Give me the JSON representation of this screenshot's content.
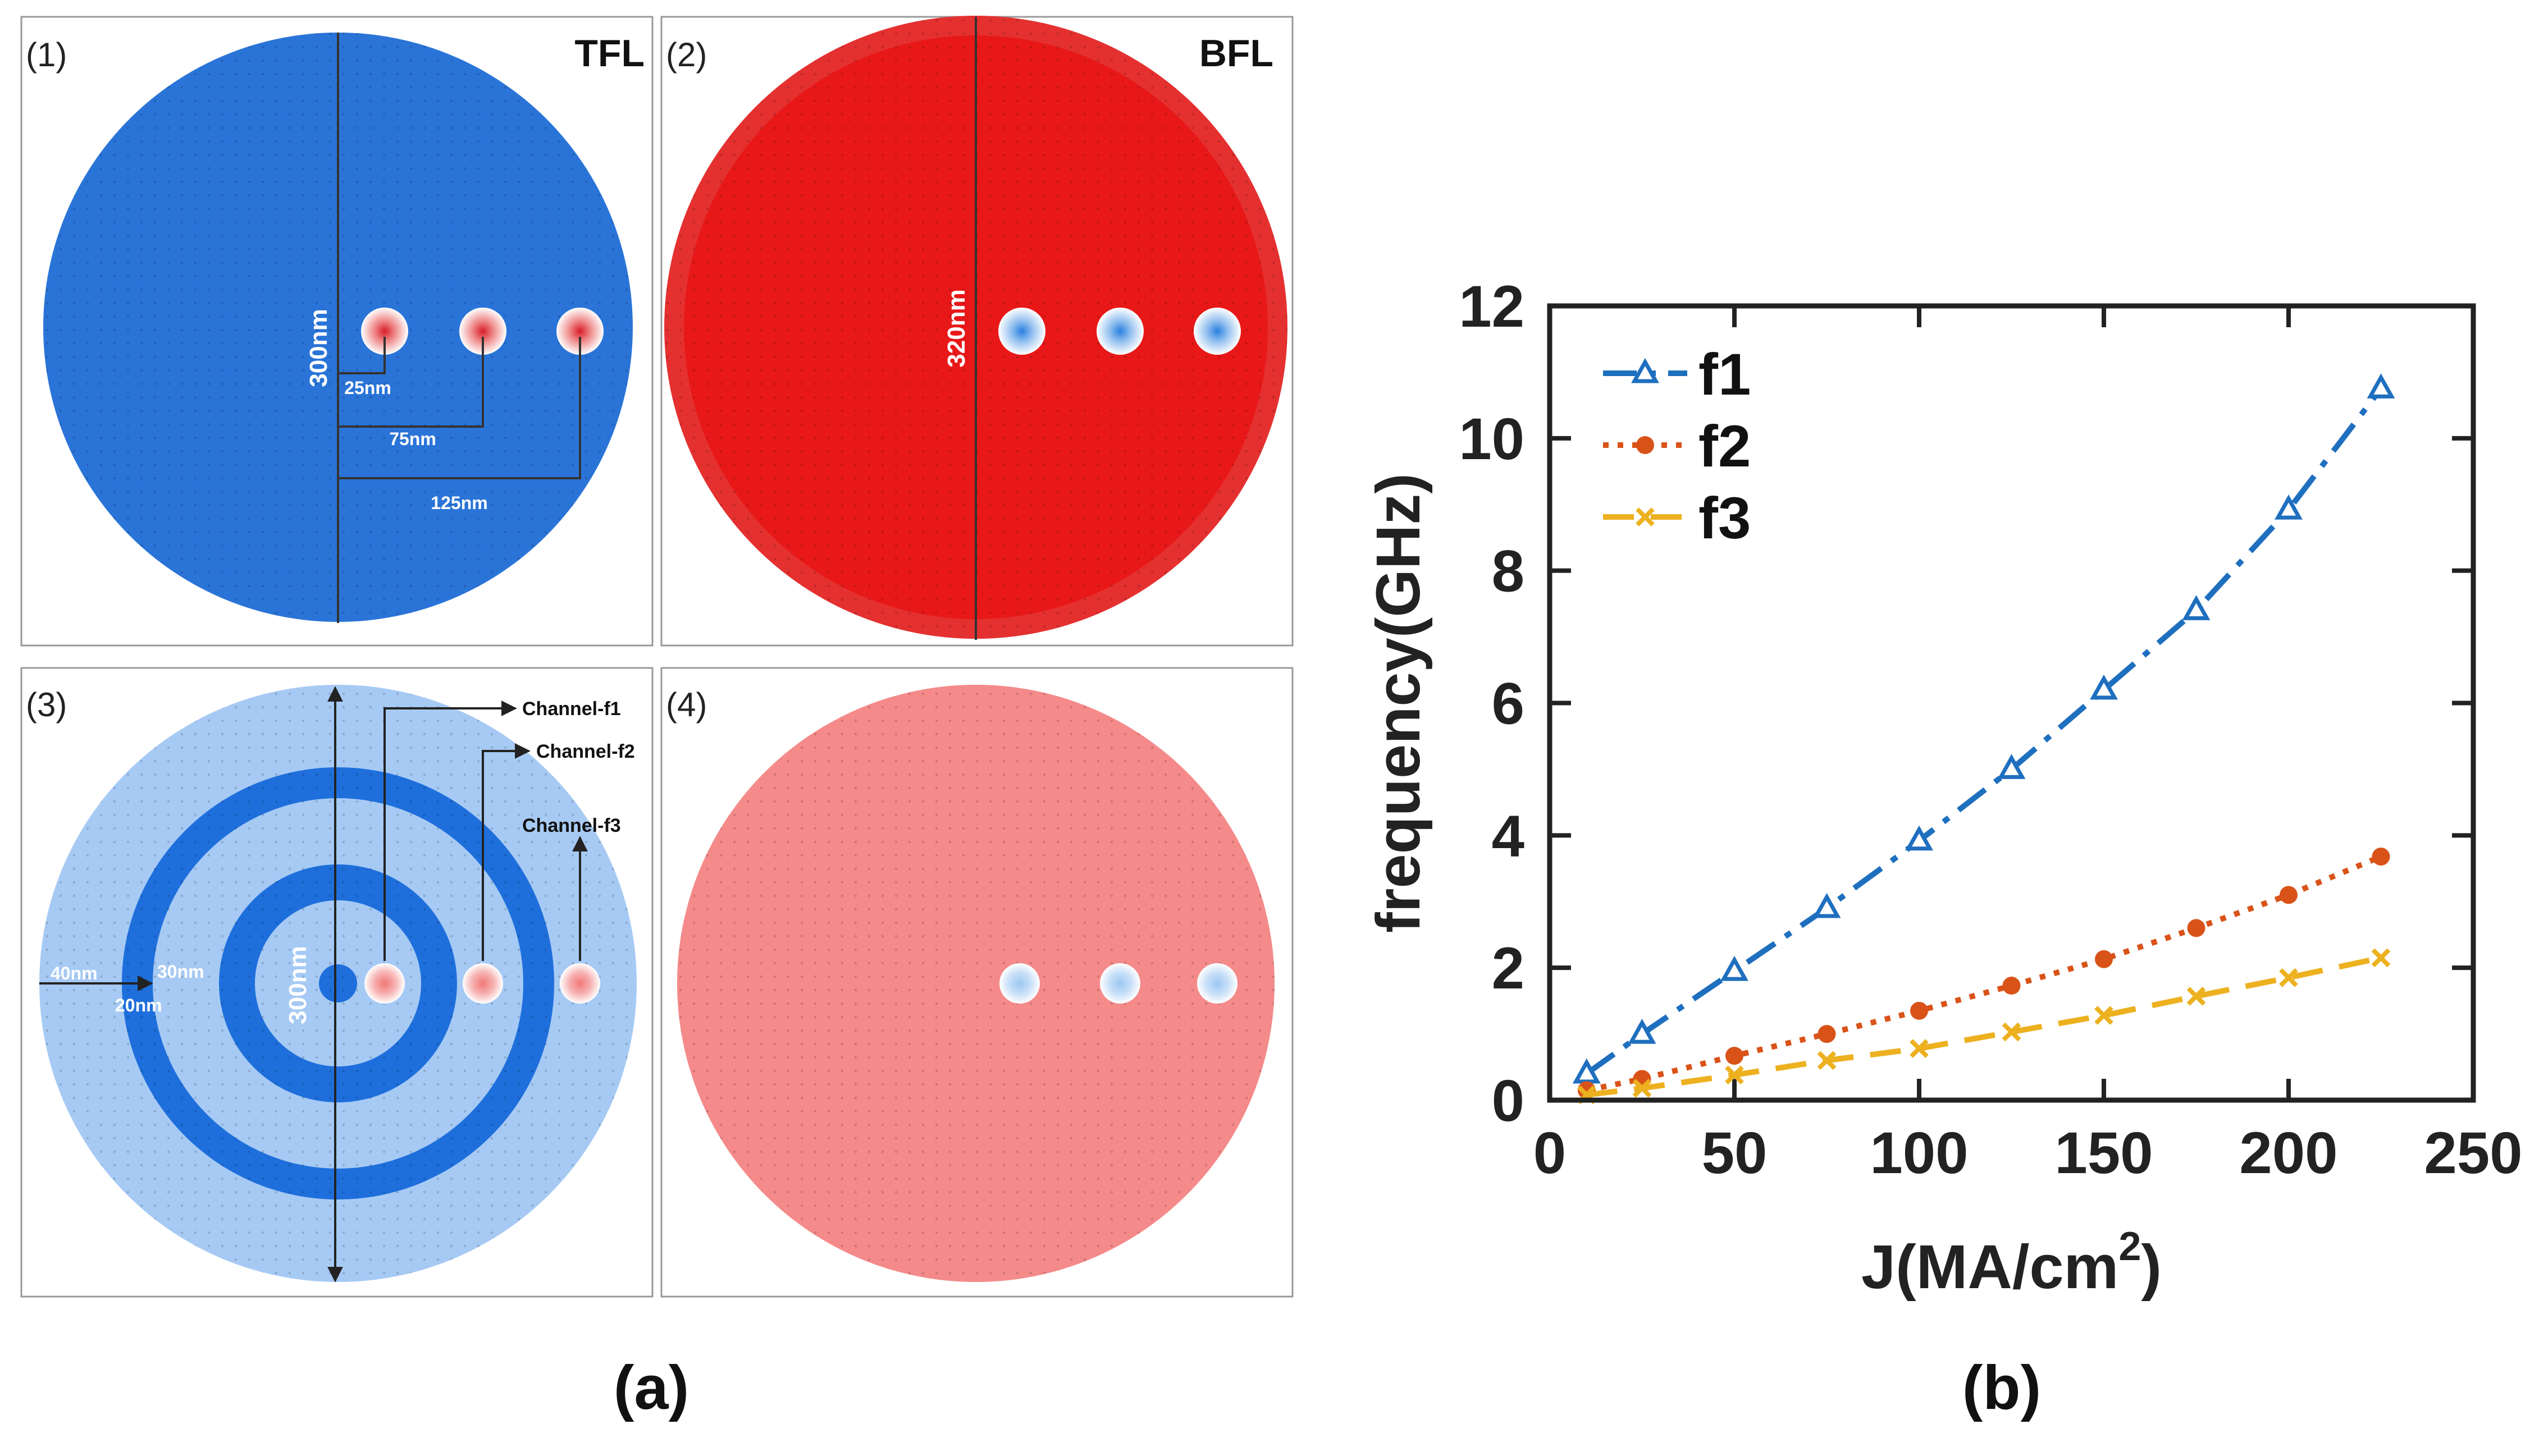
{
  "panel_a": {
    "label": "(a)",
    "subpanels": [
      {
        "label": "(1)",
        "title": "TFL",
        "fill": "#2a74d8",
        "dot_color": "#d81e2a",
        "annotations": {
          "diameter": "300nm",
          "d1": "25nm",
          "d2": "75nm",
          "d3": "125nm"
        }
      },
      {
        "label": "(2)",
        "title": "BFL",
        "fill": "#e81818",
        "dot_color": "#2a80e0",
        "annotations": {
          "diameter": "320nm"
        }
      },
      {
        "label": "(3)",
        "fill_light": "#a6caf4",
        "fill_dark": "#1e6fdc",
        "dot_color": "#f27878",
        "annotations": {
          "ch1": "Channel-f1",
          "ch2": "Channel-f2",
          "ch3": "Channel-f3",
          "w40": "40nm",
          "w30": "30nm",
          "w20": "20nm",
          "diameter": "300nm"
        }
      },
      {
        "label": "(4)",
        "fill": "#f58a8a",
        "dot_color": "#9cc8f2"
      }
    ]
  },
  "panel_b": {
    "label": "(b)"
  },
  "chart_data": {
    "type": "line",
    "xlabel": "J(MA/cm",
    "xlabel_sup": "2",
    "xlabel_end": ")",
    "ylabel": "frequency(GHz)",
    "xlim": [
      0,
      250
    ],
    "ylim": [
      0,
      12
    ],
    "xticks": [
      0,
      50,
      100,
      150,
      200,
      250
    ],
    "yticks": [
      0,
      2,
      4,
      6,
      8,
      10,
      12
    ],
    "legend_position": "top-left",
    "x": [
      10,
      25,
      50,
      75,
      100,
      125,
      150,
      175,
      200,
      225
    ],
    "series": [
      {
        "name": "f1",
        "color": "#1f6fbf",
        "marker": "triangle",
        "dash": "dashdot",
        "values": [
          0.4,
          1.0,
          1.95,
          2.9,
          3.92,
          5.0,
          6.2,
          7.4,
          8.92,
          10.75
        ]
      },
      {
        "name": "f2",
        "color": "#d95319",
        "marker": "circle",
        "dash": "dotted",
        "values": [
          0.15,
          0.32,
          0.67,
          1.0,
          1.35,
          1.73,
          2.13,
          2.6,
          3.1,
          3.68
        ]
      },
      {
        "name": "f3",
        "color": "#edb120",
        "marker": "x",
        "dash": "dashed",
        "values": [
          0.08,
          0.18,
          0.38,
          0.6,
          0.78,
          1.03,
          1.28,
          1.57,
          1.85,
          2.15
        ]
      }
    ]
  }
}
